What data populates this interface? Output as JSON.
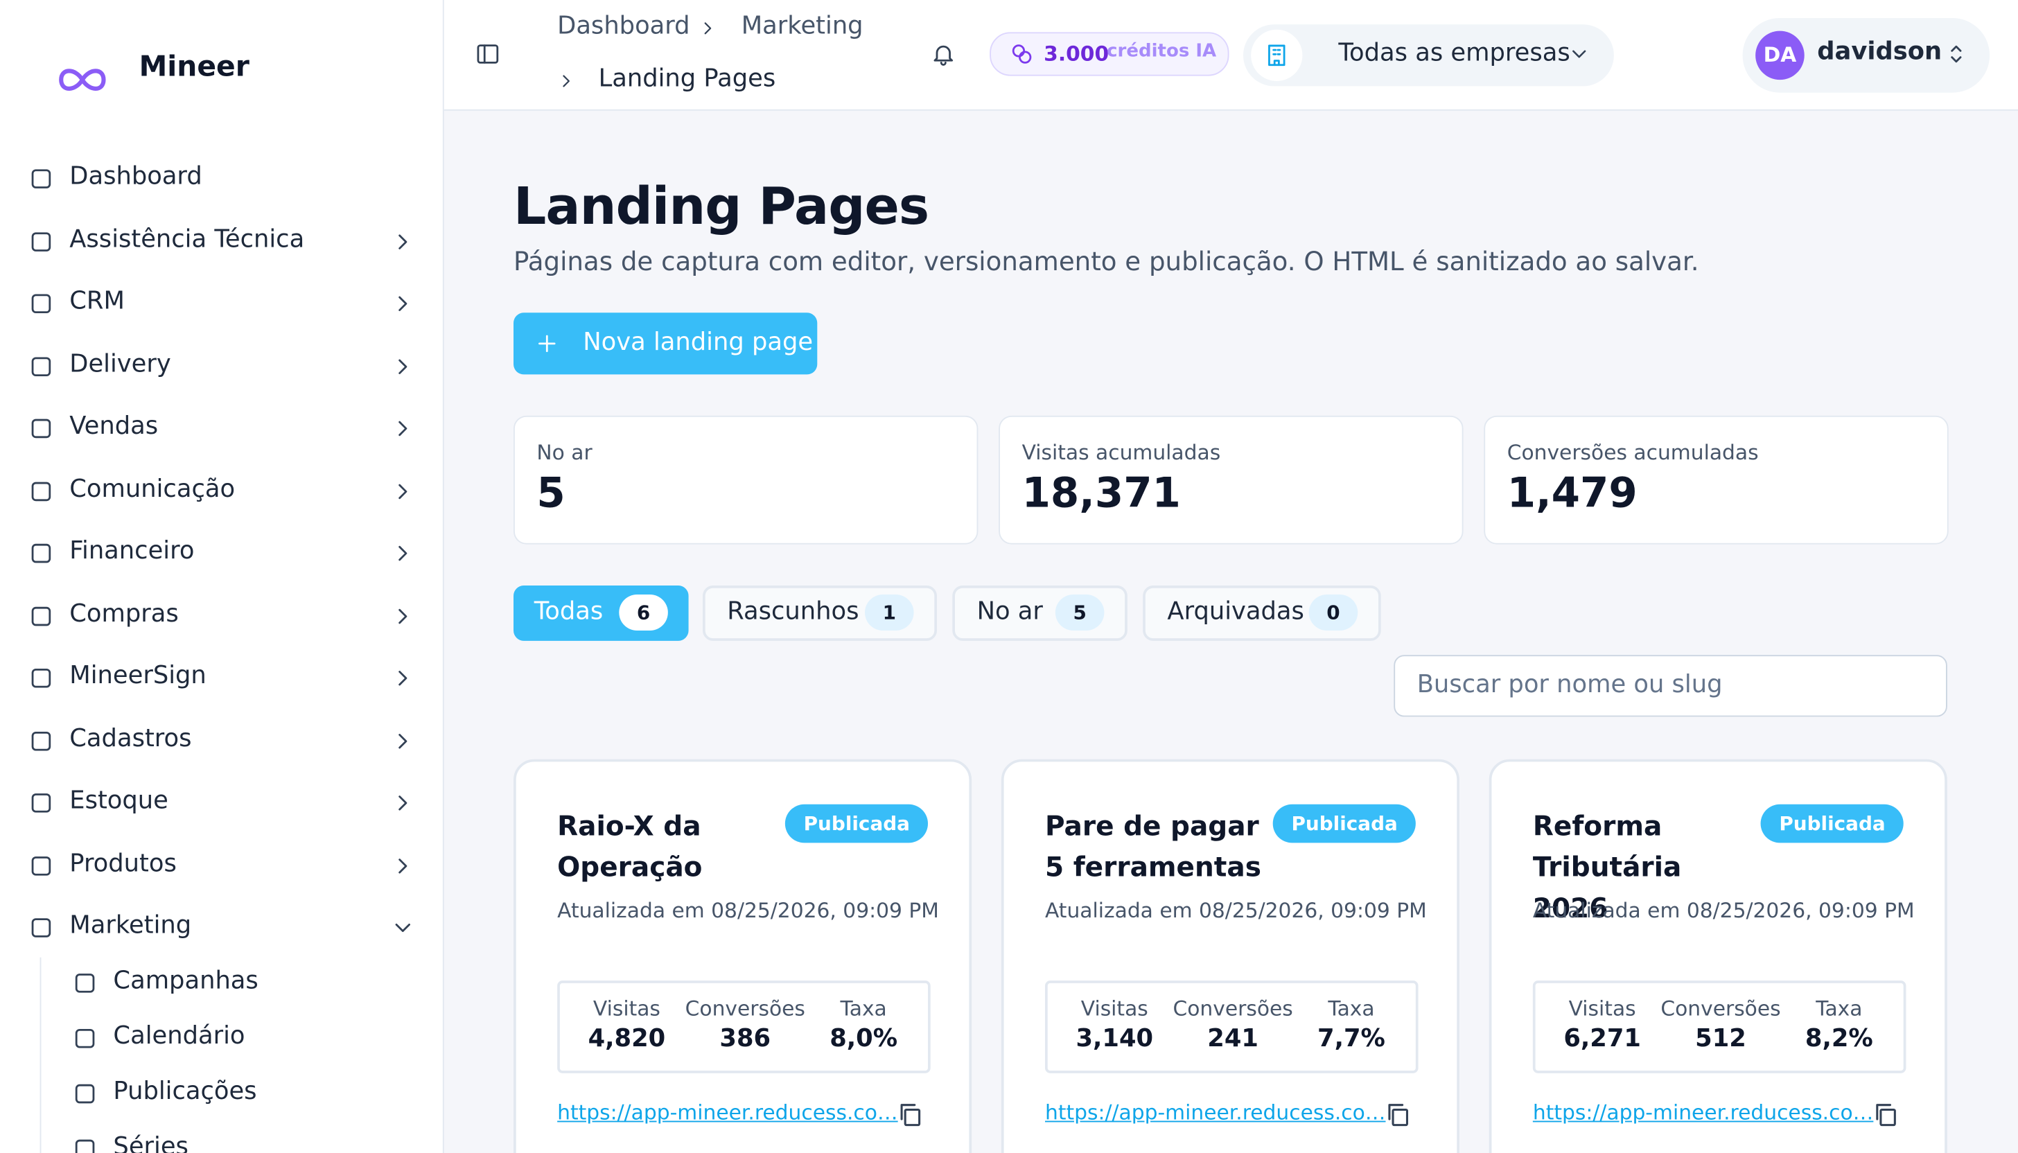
{
  "sidebar": {
    "brand": "Mineer",
    "nav": [
      {
        "label": "Dashboard",
        "has_children": false,
        "expanded": false
      },
      {
        "label": "Assistência Técnica",
        "has_children": true,
        "expanded": false
      },
      {
        "label": "CRM",
        "has_children": true,
        "expanded": false
      },
      {
        "label": "Delivery",
        "has_children": true,
        "expanded": false
      },
      {
        "label": "Vendas",
        "has_children": true,
        "expanded": false
      },
      {
        "label": "Comunicação",
        "has_children": true,
        "expanded": false
      },
      {
        "label": "Financeiro",
        "has_children": true,
        "expanded": false
      },
      {
        "label": "Compras",
        "has_children": true,
        "expanded": false
      },
      {
        "label": "MineerSign",
        "has_children": true,
        "expanded": false
      },
      {
        "label": "Cadastros",
        "has_children": true,
        "expanded": false
      },
      {
        "label": "Estoque",
        "has_children": true,
        "expanded": false
      },
      {
        "label": "Produtos",
        "has_children": true,
        "expanded": false
      },
      {
        "label": "Marketing",
        "has_children": true,
        "expanded": true
      }
    ],
    "submenu": [
      "Campanhas",
      "Calendário",
      "Publicações",
      "Séries"
    ]
  },
  "header": {
    "breadcrumb": [
      "Dashboard",
      "Marketing",
      "Landing Pages"
    ],
    "credits": {
      "value": "3.000",
      "label": "créditos IA"
    },
    "company": "Todas as empresas",
    "user": {
      "initials": "DA",
      "name": "davidson"
    }
  },
  "page": {
    "title": "Landing Pages",
    "subtitle": "Páginas de captura com editor, versionamento e publicação. O HTML é sanitizado ao salvar.",
    "new_button": "Nova landing page",
    "stats": [
      {
        "label": "No ar",
        "value": "5"
      },
      {
        "label": "Visitas acumuladas",
        "value": "18,371"
      },
      {
        "label": "Conversões acumuladas",
        "value": "1,479"
      }
    ],
    "tabs": [
      {
        "label": "Todas",
        "count": "6",
        "active": true
      },
      {
        "label": "Rascunhos",
        "count": "1",
        "active": false
      },
      {
        "label": "No ar",
        "count": "5",
        "active": false
      },
      {
        "label": "Arquivadas",
        "count": "0",
        "active": false
      }
    ],
    "search_placeholder": "Buscar por nome ou slug"
  },
  "cards": [
    {
      "title": "Raio-X da Operação",
      "status": "Publicada",
      "updated": "Atualizada em 08/25/2026, 09:09 PM",
      "metrics": [
        {
          "label": "Visitas",
          "value": "4,820"
        },
        {
          "label": "Conversões",
          "value": "386"
        },
        {
          "label": "Taxa",
          "value": "8,0%"
        }
      ],
      "url": "https://app-mineer.reducess.co…"
    },
    {
      "title": "Pare de pagar 5 ferramentas",
      "status": "Publicada",
      "updated": "Atualizada em 08/25/2026, 09:09 PM",
      "metrics": [
        {
          "label": "Visitas",
          "value": "3,140"
        },
        {
          "label": "Conversões",
          "value": "241"
        },
        {
          "label": "Taxa",
          "value": "7,7%"
        }
      ],
      "url": "https://app-mineer.reducess.co…"
    },
    {
      "title": "Reforma Tributária 2026",
      "status": "Publicada",
      "updated": "Atualizada em 08/25/2026, 09:09 PM",
      "metrics": [
        {
          "label": "Visitas",
          "value": "6,271"
        },
        {
          "label": "Conversões",
          "value": "512"
        },
        {
          "label": "Taxa",
          "value": "8,2%"
        }
      ],
      "url": "https://app-mineer.reducess.co…"
    }
  ]
}
